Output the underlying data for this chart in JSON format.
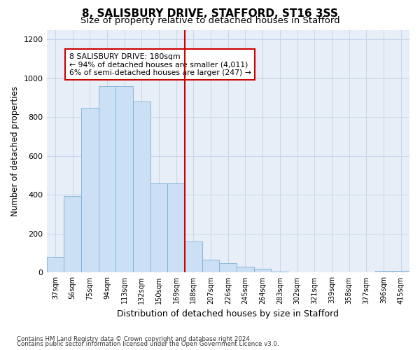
{
  "title": "8, SALISBURY DRIVE, STAFFORD, ST16 3SS",
  "subtitle": "Size of property relative to detached houses in Stafford",
  "xlabel": "Distribution of detached houses by size in Stafford",
  "ylabel": "Number of detached properties",
  "categories": [
    "37sqm",
    "56sqm",
    "75sqm",
    "94sqm",
    "113sqm",
    "132sqm",
    "150sqm",
    "169sqm",
    "188sqm",
    "207sqm",
    "226sqm",
    "245sqm",
    "264sqm",
    "283sqm",
    "302sqm",
    "321sqm",
    "339sqm",
    "358sqm",
    "377sqm",
    "396sqm",
    "415sqm"
  ],
  "values": [
    80,
    395,
    850,
    960,
    960,
    880,
    460,
    460,
    160,
    65,
    50,
    30,
    20,
    5,
    2,
    2,
    2,
    0,
    0,
    10,
    10
  ],
  "bar_color": "#cce0f5",
  "bar_edge_color": "#7aafd4",
  "vline_color": "#cc0000",
  "annotation_text": "8 SALISBURY DRIVE: 180sqm\n← 94% of detached houses are smaller (4,011)\n6% of semi-detached houses are larger (247) →",
  "annotation_box_color": "#cc0000",
  "ylim": [
    0,
    1250
  ],
  "yticks": [
    0,
    200,
    400,
    600,
    800,
    1000,
    1200
  ],
  "grid_color": "#c8d4e8",
  "bg_color": "#e8eef8",
  "footer1": "Contains HM Land Registry data © Crown copyright and database right 2024.",
  "footer2": "Contains public sector information licensed under the Open Government Licence v3.0.",
  "title_fontsize": 11,
  "subtitle_fontsize": 9.5
}
